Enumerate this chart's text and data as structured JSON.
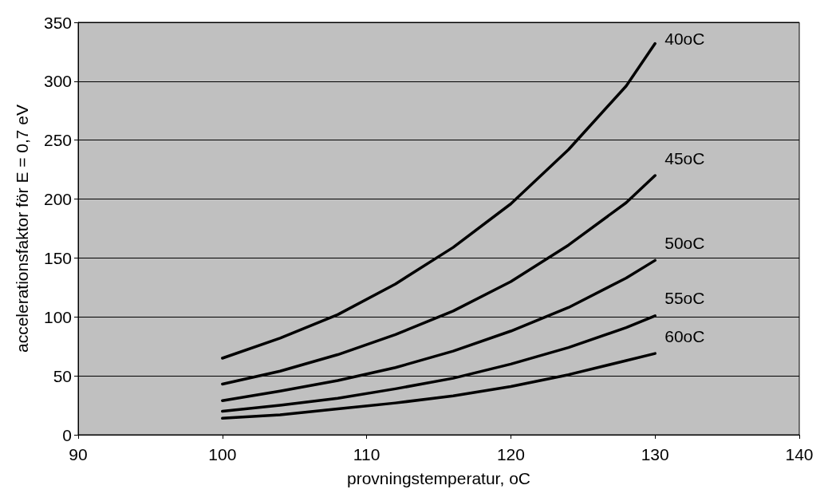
{
  "chart_data": {
    "type": "line",
    "xlabel": "provningstemperatur, oC",
    "ylabel": "accelerationsfaktor för E = 0,7 eV",
    "x": [
      100,
      104,
      108,
      112,
      116,
      120,
      124,
      128,
      130
    ],
    "series": [
      {
        "name": "40oC",
        "color": "#000000",
        "values": [
          65,
          82,
          102,
          128,
          159,
          196,
          242,
          296,
          332
        ]
      },
      {
        "name": "45oC",
        "color": "#000000",
        "values": [
          43,
          54,
          68,
          85,
          105,
          130,
          161,
          197,
          220
        ]
      },
      {
        "name": "50oC",
        "color": "#000000",
        "values": [
          29,
          37,
          46,
          57,
          71,
          88,
          108,
          133,
          148
        ]
      },
      {
        "name": "55oC",
        "color": "#000000",
        "values": [
          20,
          25,
          31,
          39,
          48,
          60,
          74,
          91,
          101
        ]
      },
      {
        "name": "60oC",
        "color": "#000000",
        "values": [
          14,
          17,
          22,
          27,
          33,
          41,
          51,
          63,
          69
        ]
      }
    ],
    "xlim": [
      90,
      140
    ],
    "xticks": [
      90,
      100,
      110,
      120,
      130,
      140
    ],
    "ylim": [
      0,
      350
    ],
    "yticks": [
      0,
      50,
      100,
      150,
      200,
      250,
      300,
      350
    ],
    "grid": "y",
    "legend": false,
    "marker": "none",
    "line_style": "solid"
  }
}
